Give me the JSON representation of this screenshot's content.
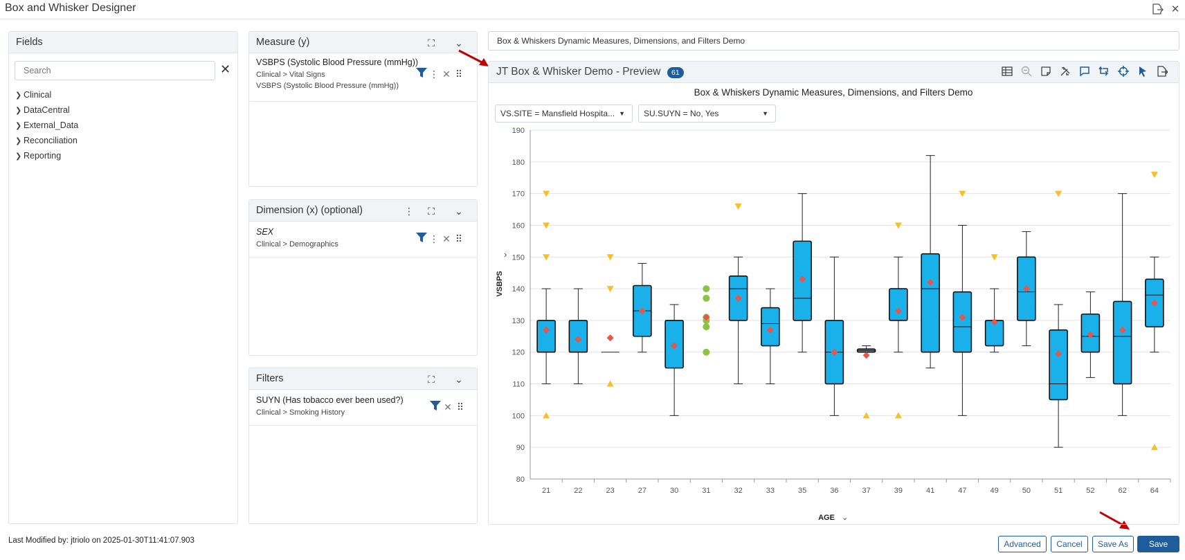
{
  "window": {
    "title": "Box and Whisker Designer"
  },
  "fields_panel": {
    "title": "Fields",
    "search_placeholder": "Search",
    "tree": [
      "Clinical",
      "DataCentral",
      "External_Data",
      "Reconciliation",
      "Reporting"
    ]
  },
  "measure_panel": {
    "title": "Measure (y)",
    "field_name": "VSBPS (Systolic Blood Pressure (mmHg))",
    "field_path": "Clinical > Vital Signs",
    "field_label": "VSBPS (Systolic Blood Pressure (mmHg))"
  },
  "dimension_panel": {
    "title": "Dimension (x) (optional)",
    "field_name": "SEX",
    "field_path": "Clinical > Demographics"
  },
  "filters_panel": {
    "title": "Filters",
    "field_name": "SUYN (Has tobacco ever been used?)",
    "field_path": "Clinical > Smoking History"
  },
  "chart_name": "Box & Whiskers Dynamic Measures, Dimensions, and Filters Demo",
  "preview": {
    "title": "JT Box & Whisker Demo - Preview",
    "badge": "61",
    "filter_site": "VS.SITE = Mansfield Hospita...",
    "filter_suyn": "SU.SUYN = No, Yes"
  },
  "colors": {
    "box": "#1ab1ea",
    "mean": "#e8554a",
    "outlier": "#f7c026",
    "green": "#8bc34a",
    "accent": "#1e5d99"
  },
  "chart_data": {
    "type": "boxplot",
    "title": "Box & Whiskers Dynamic Measures, Dimensions, and Filters Demo",
    "xlabel": "AGE",
    "ylabel": "VSBPS",
    "ylim": [
      80,
      190
    ],
    "yticks": [
      80,
      90,
      100,
      110,
      120,
      130,
      140,
      150,
      160,
      170,
      180,
      190
    ],
    "categories": [
      "21",
      "22",
      "23",
      "27",
      "30",
      "31",
      "32",
      "33",
      "35",
      "36",
      "37",
      "39",
      "41",
      "47",
      "49",
      "50",
      "51",
      "52",
      "62",
      "64"
    ],
    "boxes": [
      {
        "cat": "21",
        "min": 110,
        "q1": 120,
        "median": 120,
        "q3": 130,
        "max": 140,
        "mean": 127,
        "up": [
          170,
          160,
          150
        ],
        "down": [
          100
        ]
      },
      {
        "cat": "22",
        "min": 110,
        "q1": 120,
        "median": 120,
        "q3": 130,
        "max": 140,
        "mean": 124,
        "up": [],
        "down": []
      },
      {
        "cat": "23",
        "line": 120,
        "mean": 124.5,
        "up": [
          150,
          140
        ],
        "down": [
          110
        ]
      },
      {
        "cat": "27",
        "min": 120,
        "q1": 125,
        "median": 133,
        "q3": 141,
        "max": 148,
        "mean": 133,
        "up": [],
        "down": []
      },
      {
        "cat": "30",
        "min": 100,
        "q1": 115,
        "median": 130,
        "q3": 130,
        "max": 135,
        "mean": 122,
        "up": [],
        "down": []
      },
      {
        "cat": "31",
        "dots": [
          140,
          137,
          131,
          130,
          128,
          120
        ],
        "mean": 131,
        "up": [],
        "down": []
      },
      {
        "cat": "32",
        "min": 110,
        "q1": 130,
        "median": 140,
        "q3": 144,
        "max": 150,
        "mean": 137,
        "up": [
          166
        ],
        "down": []
      },
      {
        "cat": "33",
        "min": 110,
        "q1": 122,
        "median": 129,
        "q3": 134,
        "max": 140,
        "mean": 127,
        "up": [],
        "down": []
      },
      {
        "cat": "35",
        "min": 120,
        "q1": 130,
        "median": 137,
        "q3": 155,
        "max": 170,
        "mean": 143,
        "up": [],
        "down": []
      },
      {
        "cat": "36",
        "min": 100,
        "q1": 110,
        "median": 120,
        "q3": 130,
        "max": 150,
        "mean": 120,
        "up": [],
        "down": []
      },
      {
        "cat": "37",
        "min": 120,
        "q1": 120,
        "median": 120.5,
        "q3": 121,
        "max": 122,
        "mean": 119,
        "up": [],
        "down": [
          100
        ]
      },
      {
        "cat": "39",
        "min": 120,
        "q1": 130,
        "median": 130,
        "q3": 140,
        "max": 150,
        "mean": 133,
        "up": [
          160
        ],
        "down": [
          100
        ]
      },
      {
        "cat": "41",
        "min": 115,
        "q1": 120,
        "median": 140,
        "q3": 151,
        "max": 182,
        "mean": 142,
        "up": [],
        "down": []
      },
      {
        "cat": "47",
        "min": 100,
        "q1": 120,
        "median": 128,
        "q3": 139,
        "max": 160,
        "mean": 131,
        "up": [
          170
        ],
        "down": []
      },
      {
        "cat": "49",
        "min": 120,
        "q1": 122,
        "median": 130,
        "q3": 130,
        "max": 140,
        "mean": 129.5,
        "up": [
          150
        ],
        "down": []
      },
      {
        "cat": "50",
        "min": 122,
        "q1": 130,
        "median": 139,
        "q3": 150,
        "max": 158,
        "mean": 140,
        "up": [],
        "down": []
      },
      {
        "cat": "51",
        "min": 90,
        "q1": 105,
        "median": 110,
        "q3": 127,
        "max": 135,
        "mean": 119.5,
        "up": [
          170
        ],
        "down": []
      },
      {
        "cat": "52",
        "min": 112,
        "q1": 120,
        "median": 125,
        "q3": 132,
        "max": 139,
        "mean": 125.5,
        "up": [],
        "down": []
      },
      {
        "cat": "62",
        "min": 100,
        "q1": 110,
        "median": 125,
        "q3": 136,
        "max": 170,
        "mean": 127,
        "up": [],
        "down": []
      },
      {
        "cat": "64",
        "min": 120,
        "q1": 128,
        "median": 138,
        "q3": 143,
        "max": 150,
        "mean": 135.5,
        "up": [
          176
        ],
        "down": [
          90
        ]
      }
    ],
    "grid": true,
    "legend": "none"
  },
  "footer": {
    "last_modified": "Last Modified by: jtriolo on 2025-01-30T11:41:07.903",
    "advanced": "Advanced",
    "cancel": "Cancel",
    "save_as": "Save As",
    "save": "Save"
  }
}
